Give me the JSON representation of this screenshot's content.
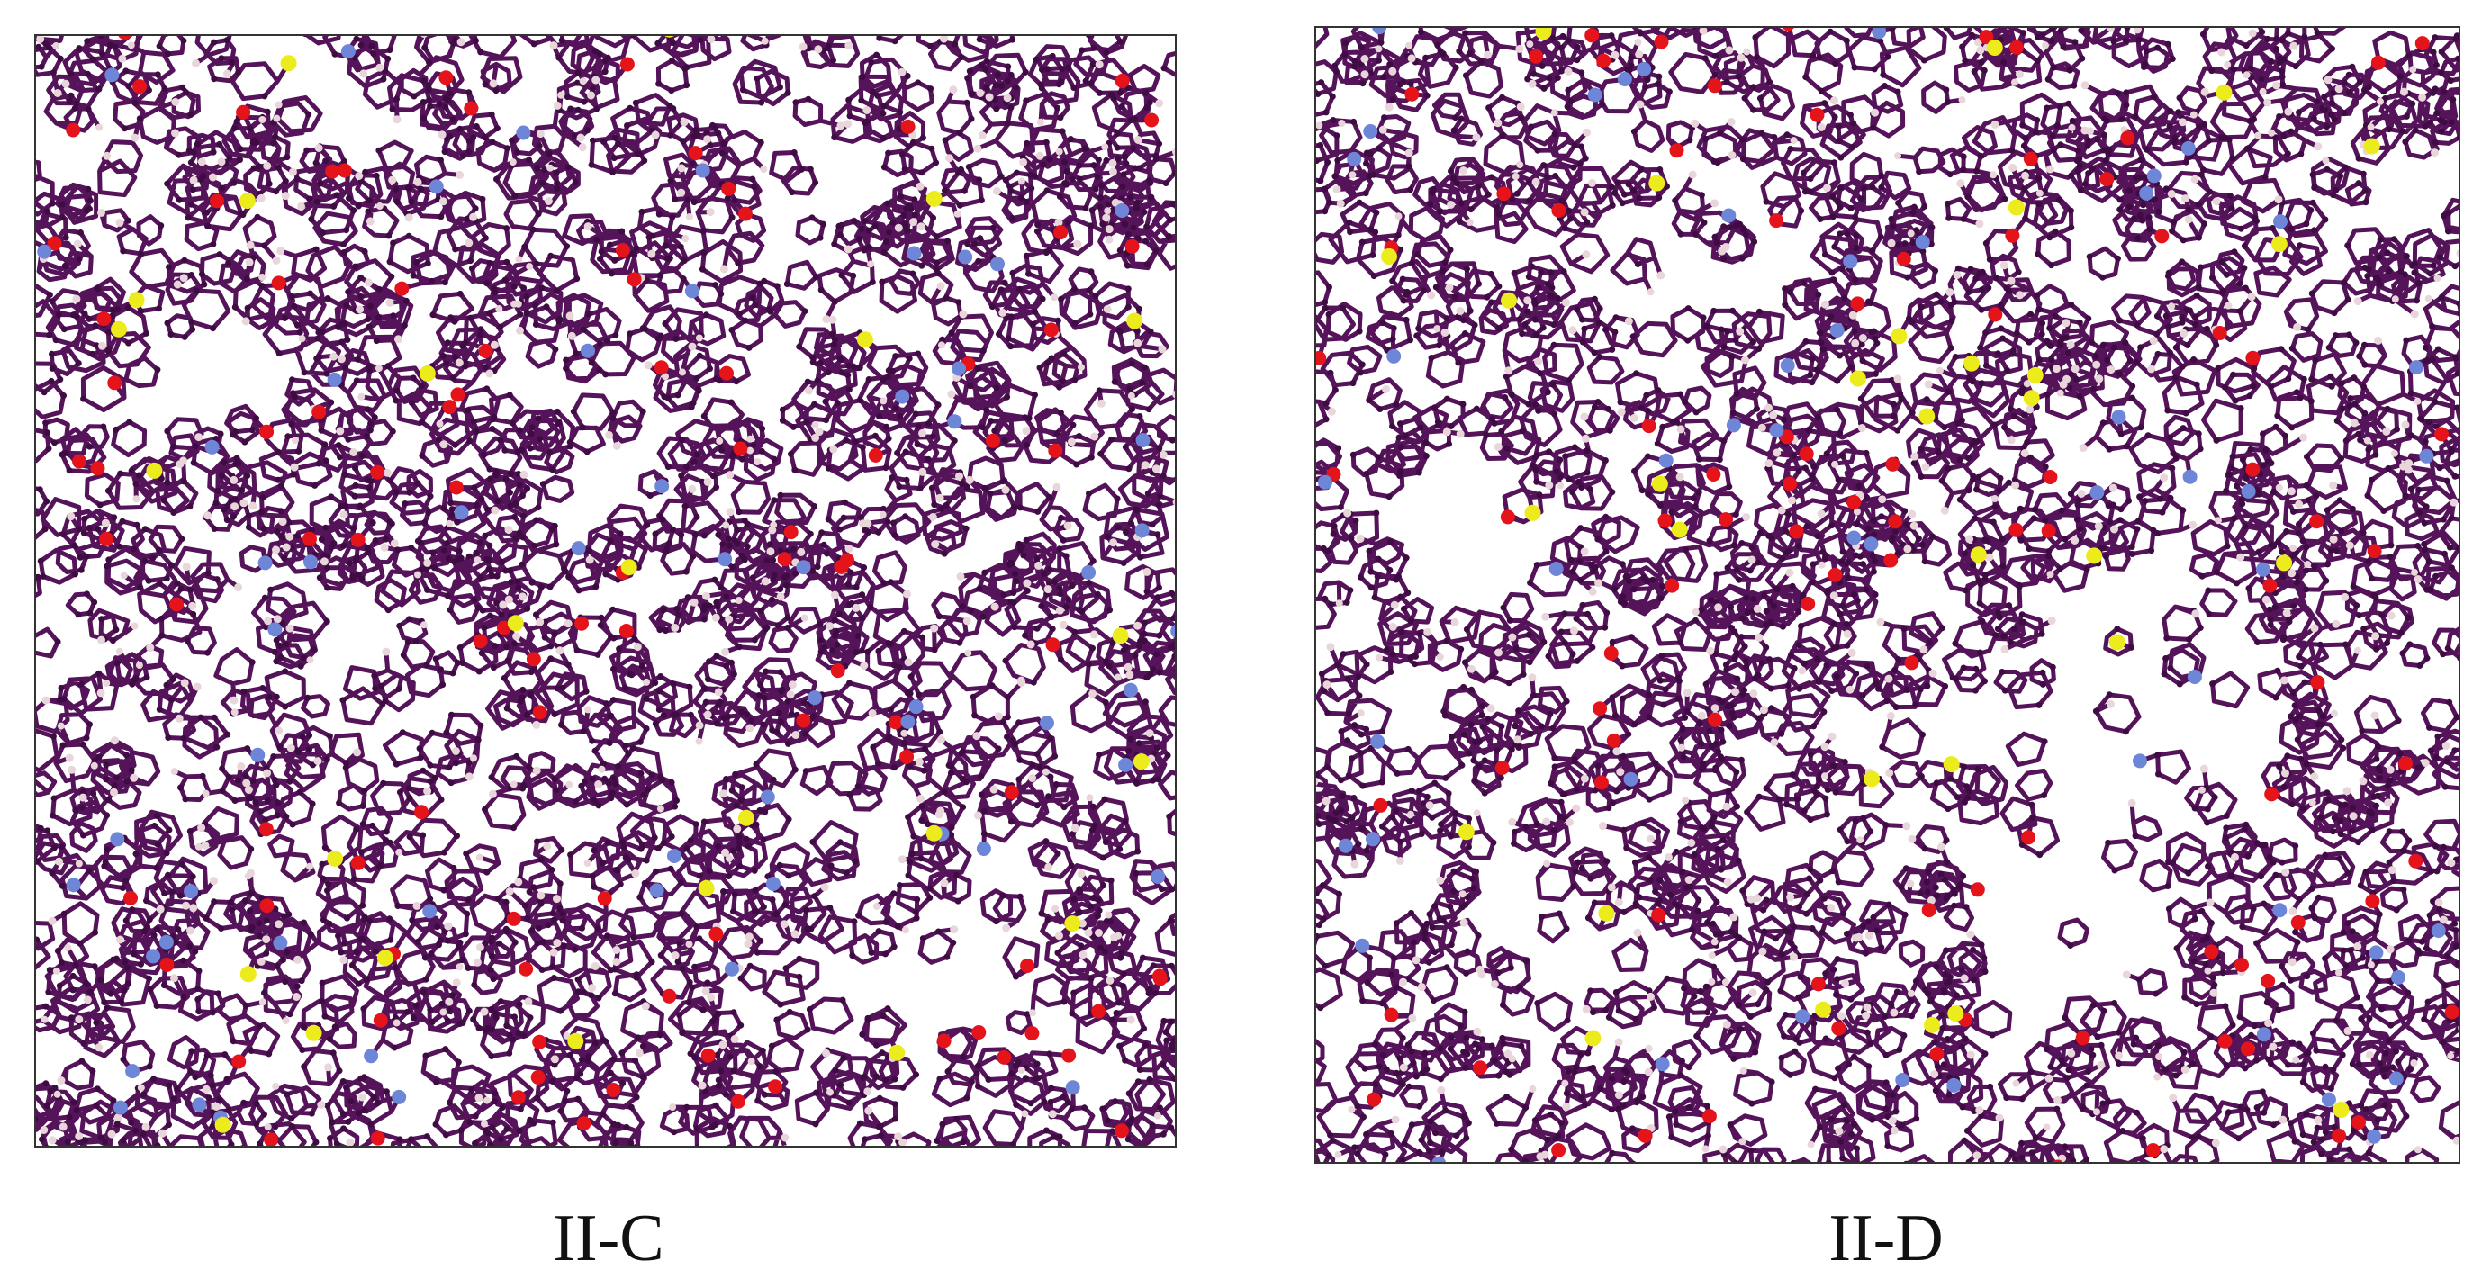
{
  "panels": [
    {
      "label": "II-C"
    },
    {
      "label": "II-D"
    }
  ]
}
